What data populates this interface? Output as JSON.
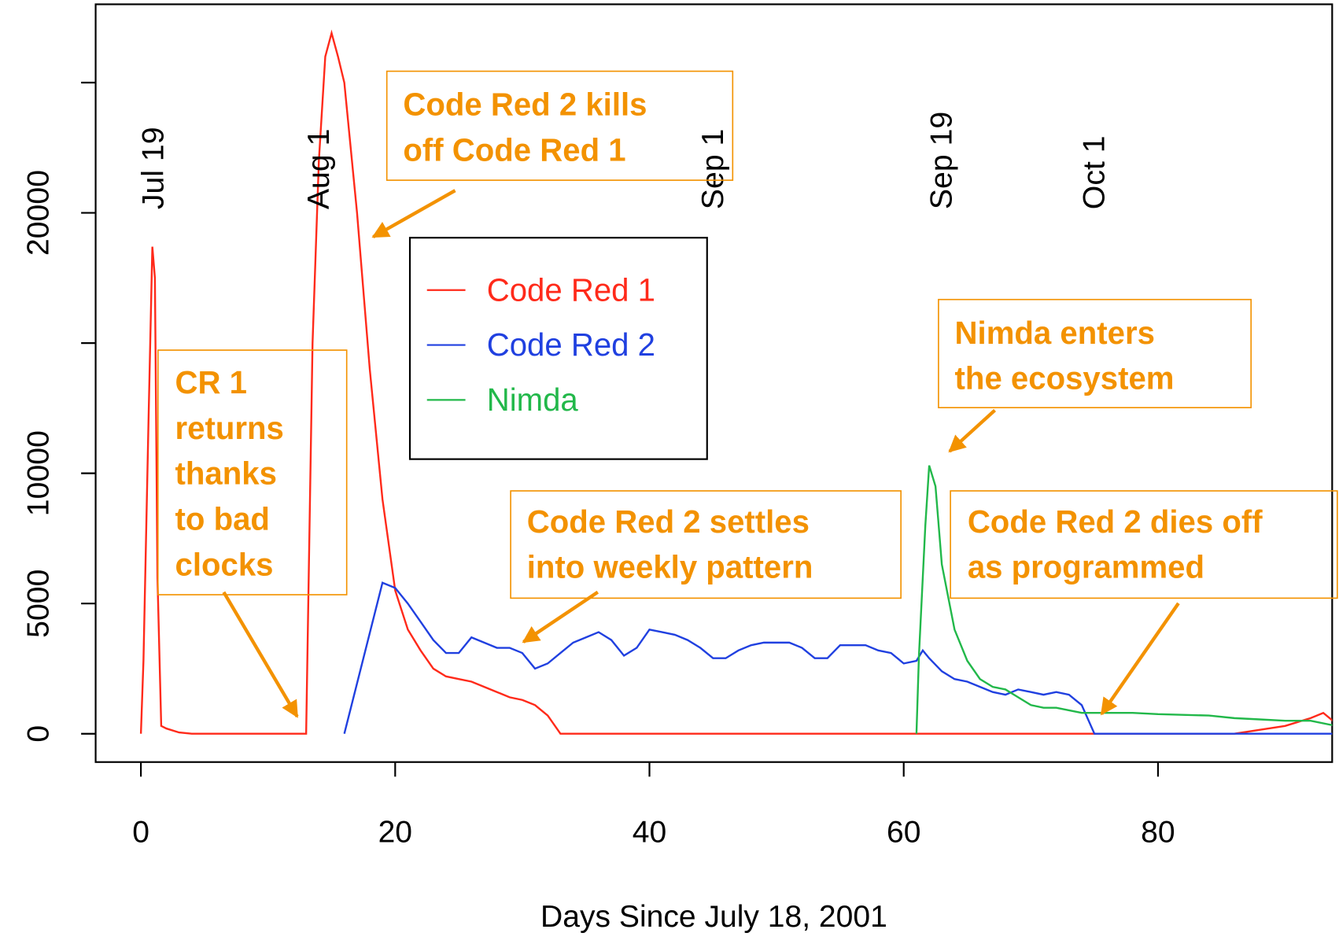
{
  "chart_data": {
    "type": "line",
    "xlabel": "Days Since July 18, 2001",
    "xlim": [
      -3.56,
      93.7
    ],
    "ylim": [
      -1087,
      28007
    ],
    "xticks": [
      0,
      20,
      40,
      60,
      80
    ],
    "yticks": [
      0,
      5000,
      10000,
      {
        "value": 15000,
        "label": null
      },
      20000,
      {
        "value": 25000,
        "label": null
      }
    ],
    "date_markers": [
      {
        "label": "Jul 19",
        "x": 1
      },
      {
        "label": "Aug 1",
        "x": 14
      },
      {
        "label": "Sep 1",
        "x": 45
      },
      {
        "label": "Sep 19",
        "x": 63
      },
      {
        "label": "Oct 1",
        "x": 75
      }
    ],
    "legend": "top-center",
    "series": [
      {
        "name": "Code Red 1",
        "color": "#ff2a1a",
        "x": [
          0,
          0.2,
          0.6,
          0.9,
          1.1,
          1.3,
          1.6,
          2,
          3,
          4,
          13,
          13.2,
          13.5,
          14,
          14.5,
          15,
          15.5,
          16,
          17,
          18,
          19,
          20,
          21,
          22,
          23,
          24,
          25,
          26,
          27,
          28,
          29,
          30,
          31,
          32,
          33,
          86,
          90,
          92,
          93,
          94
        ],
        "values": [
          0,
          2800,
          12000,
          18700,
          17500,
          6000,
          300,
          200,
          50,
          0,
          0,
          6000,
          15000,
          22000,
          26000,
          26900,
          26000,
          25000,
          20000,
          14000,
          9000,
          5500,
          4000,
          3200,
          2500,
          2200,
          2100,
          2000,
          1800,
          1600,
          1400,
          1300,
          1100,
          700,
          0,
          0,
          300,
          600,
          800,
          400
        ]
      },
      {
        "name": "Code Red 2",
        "color": "#2040e0",
        "x": [
          16,
          19,
          20,
          21,
          22,
          23,
          24,
          25,
          26,
          27,
          28,
          29,
          30,
          31,
          32,
          33,
          34,
          35,
          36,
          37,
          38,
          39,
          40,
          41,
          42,
          43,
          44,
          45,
          46,
          47,
          48,
          49,
          50,
          51,
          52,
          53,
          54,
          55,
          56,
          57,
          58,
          59,
          60,
          61,
          61.5,
          62,
          63,
          64,
          65,
          66,
          67,
          68,
          69,
          70,
          71,
          72,
          73,
          74,
          75,
          94
        ],
        "values": [
          0,
          5800,
          5600,
          5000,
          4300,
          3600,
          3100,
          3100,
          3700,
          3500,
          3300,
          3300,
          3100,
          2500,
          2700,
          3100,
          3500,
          3700,
          3900,
          3600,
          3000,
          3300,
          4000,
          3900,
          3800,
          3600,
          3300,
          2900,
          2900,
          3200,
          3400,
          3500,
          3500,
          3500,
          3300,
          2900,
          2900,
          3400,
          3400,
          3400,
          3200,
          3100,
          2700,
          2800,
          3200,
          2900,
          2400,
          2100,
          2000,
          1800,
          1600,
          1500,
          1700,
          1600,
          1500,
          1600,
          1500,
          1100,
          0,
          0
        ]
      },
      {
        "name": "Nimda",
        "color": "#22b84a",
        "x": [
          61,
          61.2,
          61.7,
          62,
          62.5,
          63,
          64,
          65,
          66,
          67,
          68,
          69,
          70,
          71,
          72,
          73,
          74,
          75,
          76,
          78,
          80,
          84,
          86,
          88,
          90,
          92,
          94
        ],
        "values": [
          0,
          3000,
          8000,
          10300,
          9500,
          6500,
          4000,
          2800,
          2100,
          1800,
          1700,
          1400,
          1100,
          1000,
          1000,
          900,
          800,
          800,
          800,
          800,
          750,
          700,
          600,
          550,
          500,
          500,
          300
        ]
      }
    ],
    "annotations": [
      {
        "lines": [
          "Code Red 2 kills",
          "off Code Red 1"
        ]
      },
      {
        "lines": [
          "CR 1",
          "returns",
          "thanks",
          "to bad",
          "clocks"
        ]
      },
      {
        "lines": [
          "Code Red 2 settles",
          "into weekly pattern"
        ]
      },
      {
        "lines": [
          "Nimda enters",
          "the ecosystem"
        ]
      },
      {
        "lines": [
          "Code Red 2 dies off",
          "as programmed"
        ]
      }
    ]
  }
}
